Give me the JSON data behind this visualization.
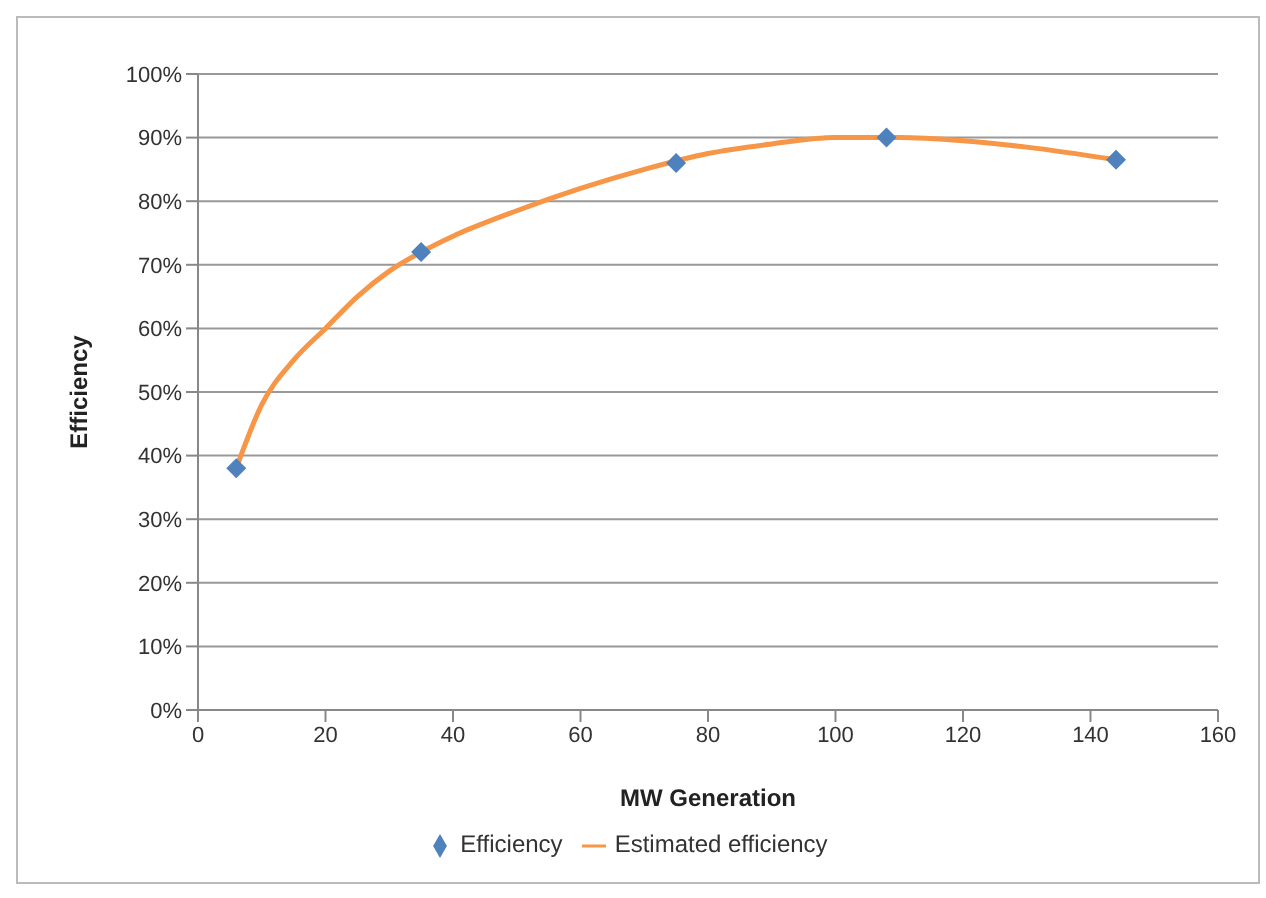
{
  "chart_data": {
    "type": "scatter",
    "xlabel": "MW Generation",
    "ylabel": "Efficiency",
    "xlim": [
      0,
      160
    ],
    "xticks": [
      0,
      20,
      40,
      60,
      80,
      100,
      120,
      140,
      160
    ],
    "ylim": [
      0,
      100
    ],
    "yticks": [
      {
        "value": 0,
        "label": "0%"
      },
      {
        "value": 10,
        "label": "10%"
      },
      {
        "value": 20,
        "label": "20%"
      },
      {
        "value": 30,
        "label": "30%"
      },
      {
        "value": 40,
        "label": "40%"
      },
      {
        "value": 50,
        "label": "50%"
      },
      {
        "value": 60,
        "label": "60%"
      },
      {
        "value": 70,
        "label": "70%"
      },
      {
        "value": 80,
        "label": "80%"
      },
      {
        "value": 90,
        "label": "90%"
      },
      {
        "value": 100,
        "label": "100%"
      }
    ],
    "grid": "y",
    "legend": "bottom",
    "series": [
      {
        "name": "Efficiency",
        "marker": "diamond",
        "color": "#4f81bd",
        "x": [
          6,
          35,
          75,
          108,
          144
        ],
        "values": [
          38,
          72,
          86,
          90,
          86.5
        ]
      },
      {
        "name": "Estimated efficiency",
        "type": "line",
        "marker": "none",
        "line_style": "solid",
        "color": "#f79646",
        "x": [
          6,
          10,
          15,
          20,
          25,
          30,
          35,
          40,
          50,
          60,
          70,
          80,
          90,
          100,
          110,
          120,
          130,
          144
        ],
        "values": [
          38,
          48,
          55,
          60,
          65,
          69,
          72,
          74.5,
          78.5,
          82,
          85,
          87.5,
          89,
          90,
          90,
          89.5,
          88.5,
          86.5
        ]
      }
    ]
  }
}
